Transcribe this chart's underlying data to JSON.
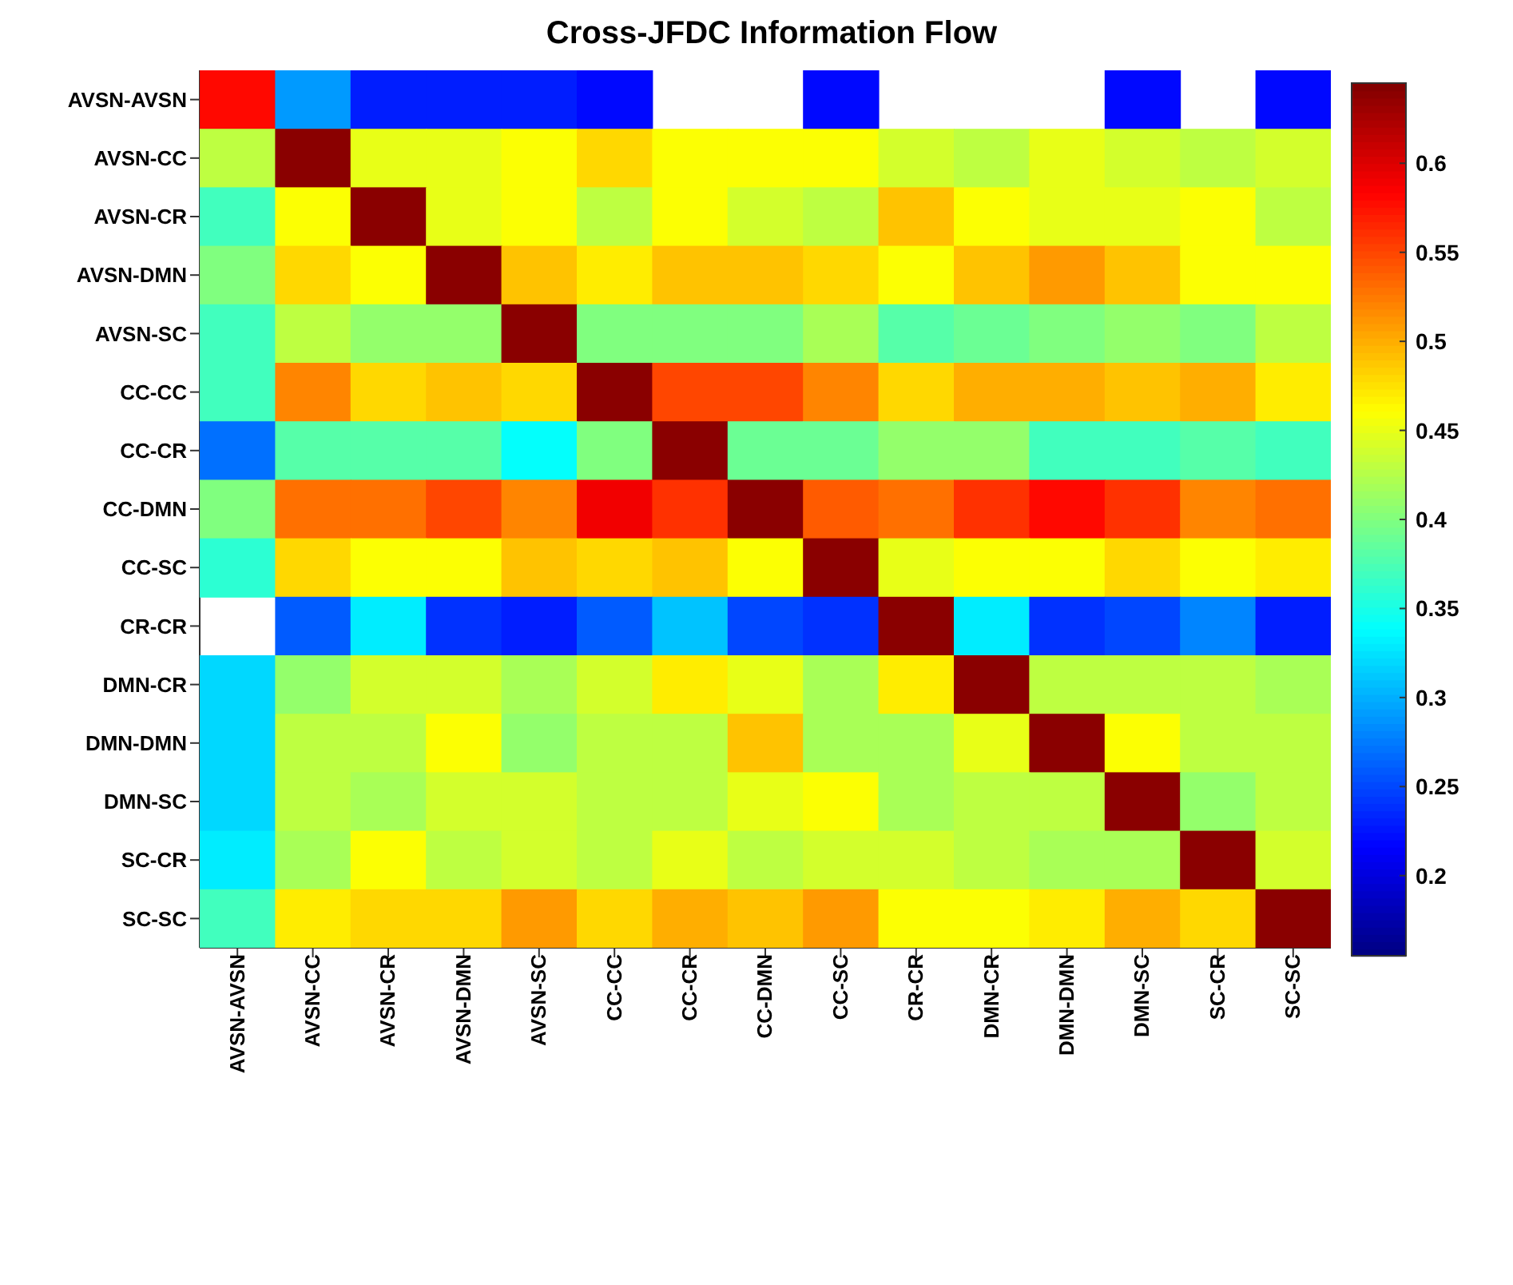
{
  "chart_data": {
    "type": "heatmap",
    "title": "Cross-JFDC Information Flow",
    "categories": [
      "AVSN-AVSN",
      "AVSN-CC",
      "AVSN-CR",
      "AVSN-DMN",
      "AVSN-SC",
      "CC-CC",
      "CC-CR",
      "CC-DMN",
      "CC-SC",
      "CR-CR",
      "DMN-CR",
      "DMN-DMN",
      "DMN-SC",
      "SC-CR",
      "SC-SC"
    ],
    "y_categories": [
      "AVSN-AVSN",
      "AVSN-CC",
      "AVSN-CR",
      "AVSN-DMN",
      "AVSN-SC",
      "CC-CC",
      "CC-CR",
      "CC-DMN",
      "CC-SC",
      "CR-CR",
      "DMN-CR",
      "DMN-DMN",
      "DMN-SC",
      "SC-CR",
      "SC-SC"
    ],
    "cells": [
      [
        0.58,
        0.29,
        0.23,
        0.23,
        0.23,
        0.22,
        null,
        null,
        0.22,
        null,
        null,
        null,
        0.22,
        null,
        0.22
      ],
      [
        0.43,
        0.64,
        0.45,
        0.45,
        0.46,
        0.48,
        0.46,
        0.46,
        0.46,
        0.44,
        0.43,
        0.45,
        0.44,
        0.43,
        0.44
      ],
      [
        0.37,
        0.46,
        0.64,
        0.45,
        0.46,
        0.43,
        0.46,
        0.44,
        0.43,
        0.49,
        0.46,
        0.45,
        0.45,
        0.46,
        0.43
      ],
      [
        0.4,
        0.48,
        0.46,
        0.64,
        0.49,
        0.47,
        0.49,
        0.49,
        0.48,
        0.46,
        0.49,
        0.51,
        0.49,
        0.46,
        0.46
      ],
      [
        0.37,
        0.43,
        0.41,
        0.41,
        0.64,
        0.4,
        0.4,
        0.4,
        0.42,
        0.38,
        0.39,
        0.4,
        0.41,
        0.4,
        0.43
      ],
      [
        0.37,
        0.52,
        0.48,
        0.49,
        0.48,
        0.64,
        0.55,
        0.55,
        0.52,
        0.48,
        0.5,
        0.5,
        0.49,
        0.5,
        0.47
      ],
      [
        0.27,
        0.38,
        0.38,
        0.38,
        0.34,
        0.4,
        0.64,
        0.39,
        0.39,
        0.41,
        0.41,
        0.37,
        0.37,
        0.38,
        0.37
      ],
      [
        0.4,
        0.53,
        0.53,
        0.55,
        0.52,
        0.59,
        0.56,
        0.64,
        0.54,
        0.53,
        0.56,
        0.58,
        0.56,
        0.52,
        0.53
      ],
      [
        0.36,
        0.48,
        0.46,
        0.46,
        0.49,
        0.48,
        0.49,
        0.46,
        0.64,
        0.45,
        0.46,
        0.46,
        0.48,
        0.46,
        0.47
      ],
      [
        null,
        0.26,
        0.33,
        0.24,
        0.23,
        0.26,
        0.31,
        0.25,
        0.24,
        0.64,
        0.33,
        0.24,
        0.25,
        0.28,
        0.23
      ],
      [
        0.32,
        0.41,
        0.44,
        0.44,
        0.42,
        0.44,
        0.47,
        0.45,
        0.42,
        0.47,
        0.64,
        0.43,
        0.43,
        0.43,
        0.42
      ],
      [
        0.32,
        0.43,
        0.43,
        0.46,
        0.41,
        0.43,
        0.43,
        0.49,
        0.42,
        0.42,
        0.45,
        0.64,
        0.46,
        0.43,
        0.43
      ],
      [
        0.32,
        0.43,
        0.42,
        0.44,
        0.44,
        0.43,
        0.43,
        0.45,
        0.46,
        0.42,
        0.43,
        0.43,
        0.64,
        0.41,
        0.43
      ],
      [
        0.33,
        0.42,
        0.46,
        0.43,
        0.44,
        0.43,
        0.45,
        0.43,
        0.44,
        0.44,
        0.43,
        0.42,
        0.42,
        0.64,
        0.44
      ],
      [
        0.37,
        0.47,
        0.48,
        0.48,
        0.51,
        0.48,
        0.5,
        0.49,
        0.51,
        0.46,
        0.46,
        0.47,
        0.5,
        0.48,
        0.64
      ]
    ],
    "clim": [
      0.155,
      0.645
    ],
    "cticks": [
      0.2,
      0.25,
      0.3,
      0.35,
      0.4,
      0.45,
      0.5,
      0.55,
      0.6
    ]
  }
}
